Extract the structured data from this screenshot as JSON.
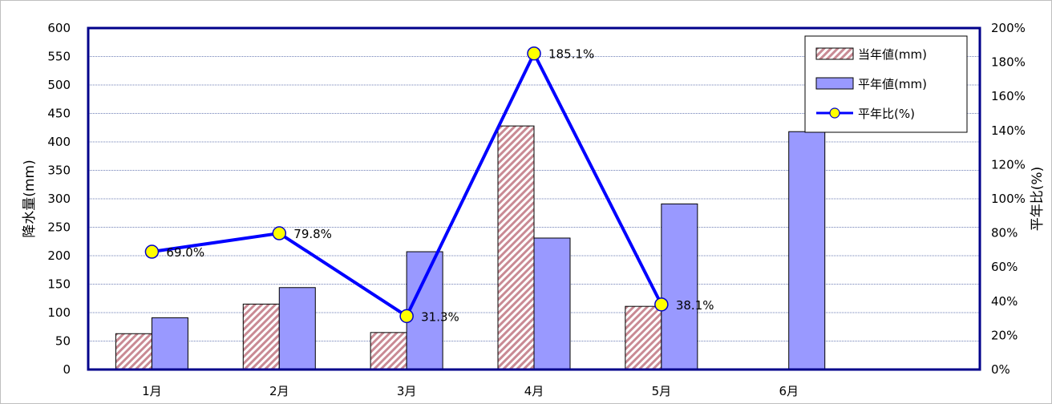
{
  "chart_data": {
    "type": "bar",
    "categories": [
      "1月",
      "2月",
      "3月",
      "4月",
      "5月",
      "6月"
    ],
    "series": [
      {
        "name": "当年値(mm)",
        "type": "bar",
        "axis": "left",
        "color": "#c98a94",
        "pattern": "diagonal-hatch",
        "values": [
          63,
          115,
          65,
          428,
          111,
          null
        ]
      },
      {
        "name": "平年値(mm)",
        "type": "bar",
        "axis": "left",
        "color": "#9999ff",
        "values": [
          91,
          144,
          207,
          231,
          291,
          418
        ]
      },
      {
        "name": "平年比(%)",
        "type": "line",
        "axis": "right",
        "color": "#0000ff",
        "marker_color": "#ffff00",
        "values": [
          69.0,
          79.8,
          31.3,
          185.1,
          38.1,
          null
        ],
        "labels": [
          "69.0%",
          "79.8%",
          "31.3%",
          "185.1%",
          "38.1%",
          ""
        ]
      }
    ],
    "ylabel": "降水量(mm)",
    "y2label": "平年比(%)",
    "ylim": [
      0,
      600
    ],
    "y2lim": [
      0,
      200
    ],
    "yticks": [
      "0",
      "50",
      "100",
      "150",
      "200",
      "250",
      "300",
      "350",
      "400",
      "450",
      "500",
      "550",
      "600"
    ],
    "y2ticks": [
      "0%",
      "20%",
      "40%",
      "60%",
      "80%",
      "100%",
      "120%",
      "140%",
      "160%",
      "180%",
      "200%"
    ],
    "grid": true,
    "legend_position": "top-right"
  }
}
